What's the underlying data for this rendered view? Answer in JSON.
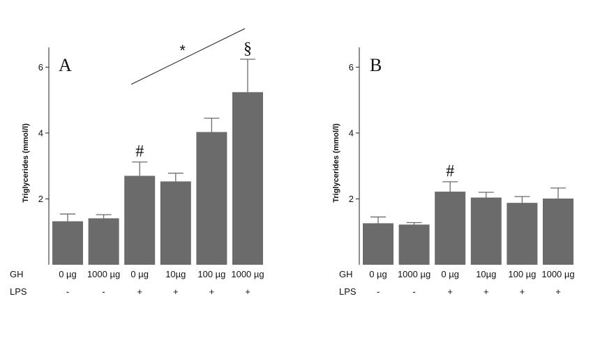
{
  "chart_data": [
    {
      "type": "bar",
      "panel_label": "A",
      "ylabel": "Triglycerides (mmol/l)",
      "ylim": [
        0,
        6.6
      ],
      "yticks": [
        2,
        4,
        6
      ],
      "row_labels": [
        "GH",
        "LPS"
      ],
      "categories": [
        "0 µg",
        "1000 µg",
        "0 µg",
        "10µg",
        "100 µg",
        "1000 µg"
      ],
      "lps": [
        "-",
        "-",
        "+",
        "+",
        "+",
        "+"
      ],
      "values": [
        1.32,
        1.41,
        2.7,
        2.53,
        4.03,
        5.24
      ],
      "errors": [
        0.22,
        0.11,
        0.42,
        0.25,
        0.42,
        1.0
      ],
      "annotations": [
        {
          "text": "#",
          "category_index": 2
        },
        {
          "text": "§",
          "category_index": 5
        },
        {
          "text": "*",
          "trend_from_index": 2,
          "trend_to_index": 5
        }
      ]
    },
    {
      "type": "bar",
      "panel_label": "B",
      "ylabel": "Triglycerides (mmol/l)",
      "ylim": [
        0,
        6.6
      ],
      "yticks": [
        2,
        4,
        6
      ],
      "row_labels": [
        "GH",
        "LPS"
      ],
      "categories": [
        "0 µg",
        "1000 µg",
        "0 µg",
        "10µg",
        "100 µg",
        "1000 µg"
      ],
      "lps": [
        "-",
        "-",
        "+",
        "+",
        "+",
        "+"
      ],
      "values": [
        1.26,
        1.22,
        2.22,
        2.04,
        1.88,
        2.01
      ],
      "errors": [
        0.19,
        0.06,
        0.3,
        0.16,
        0.19,
        0.32
      ],
      "annotations": [
        {
          "text": "#",
          "category_index": 2
        }
      ]
    }
  ]
}
